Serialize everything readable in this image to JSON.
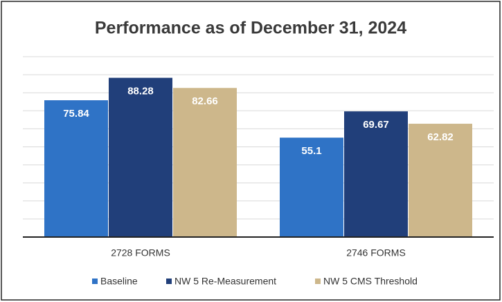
{
  "chart_data": {
    "type": "bar",
    "title": "Performance as of December 31, 2024",
    "categories": [
      "2728 FORMS",
      "2746 FORMS"
    ],
    "series": [
      {
        "name": "Baseline",
        "color": "#2f73c6",
        "values": [
          75.84,
          55.1
        ]
      },
      {
        "name": "NW 5 Re-Measurement",
        "color": "#213f7a",
        "values": [
          88.28,
          69.67
        ]
      },
      {
        "name": "NW 5 CMS Threshold",
        "color": "#cdb78b",
        "values": [
          82.66,
          62.82
        ]
      }
    ],
    "ylim": [
      0,
      100
    ],
    "yticks": [
      0,
      10,
      20,
      30,
      40,
      50,
      60,
      70,
      80,
      90,
      100
    ],
    "grid": true
  }
}
